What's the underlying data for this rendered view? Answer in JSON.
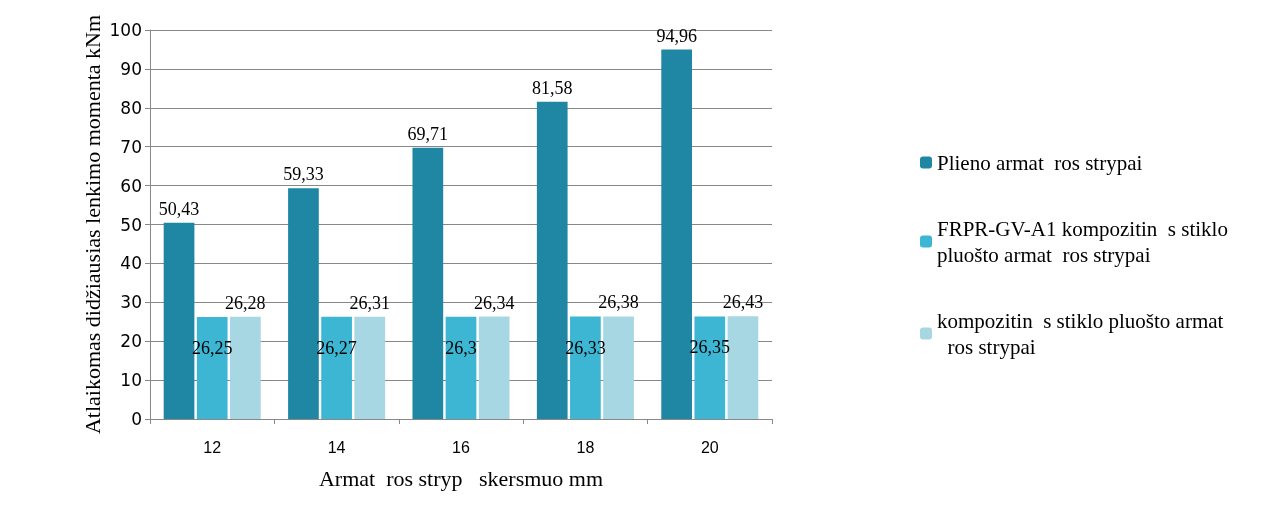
{
  "chart_data": {
    "type": "bar",
    "xlabel": "Armat  ros stryp   skersmuo mm",
    "ylabel": "Atlaikomas didžiausias lenkimo momenta kNm",
    "categories": [
      "12",
      "14",
      "16",
      "18",
      "20"
    ],
    "series": [
      {
        "name": "Plieno armat  ros strypai",
        "color": "#1f86a3",
        "values": [
          50.43,
          59.33,
          69.71,
          81.58,
          94.96
        ],
        "value_labels": [
          "50,43",
          "59,33",
          "69,71",
          "81,58",
          "94,96"
        ]
      },
      {
        "name": "FRPR-GV-A1 kompozitin  s stiklo pluošto armat  ros strypai",
        "color": "#3db6d3",
        "values": [
          26.25,
          26.27,
          26.3,
          26.33,
          26.35
        ],
        "value_labels": [
          "26,25",
          "26,27",
          "26,3",
          "26,33",
          "26,35"
        ]
      },
      {
        "name": "kompozitin  s stiklo pluošto armat  ros strypai",
        "color": "#a6d7e2",
        "values": [
          26.28,
          26.31,
          26.34,
          26.38,
          26.43
        ],
        "value_labels": [
          "26,28",
          "26,31",
          "26,34",
          "26,38",
          "26,43"
        ]
      }
    ],
    "ylim": [
      0,
      100
    ],
    "yticks": [
      0,
      10,
      20,
      30,
      40,
      50,
      60,
      70,
      80,
      90,
      100
    ],
    "grid": "y",
    "legend": "right"
  }
}
